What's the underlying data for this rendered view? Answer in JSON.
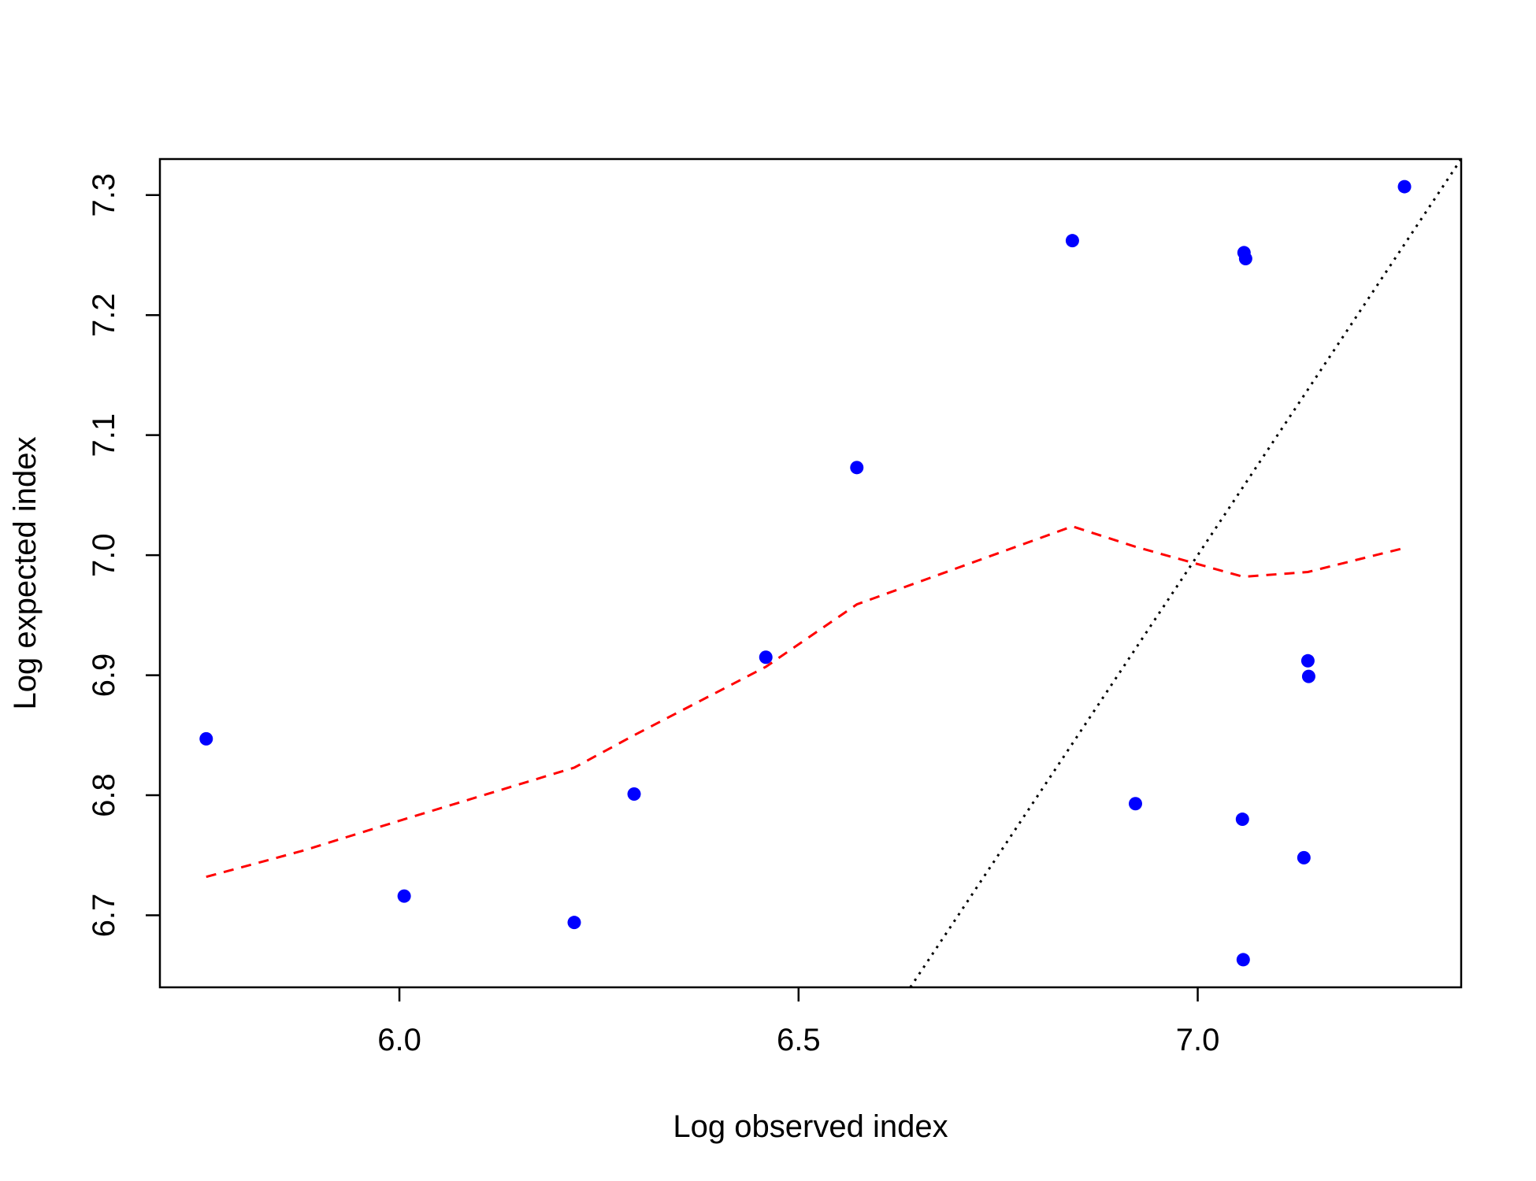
{
  "chart_data": {
    "type": "scatter",
    "xlabel": "Log observed index",
    "ylabel": "Log expected index",
    "xlim": [
      5.7,
      7.33
    ],
    "ylim": [
      6.64,
      7.33
    ],
    "x_ticks": [
      6.0,
      6.5,
      7.0
    ],
    "x_tick_labels": [
      "6.0",
      "6.5",
      "7.0"
    ],
    "y_ticks": [
      6.7,
      6.8,
      6.9,
      7.0,
      7.1,
      7.2,
      7.3
    ],
    "y_tick_labels": [
      "6.7",
      "6.8",
      "6.9",
      "7.0",
      "7.1",
      "7.2",
      "7.3"
    ],
    "grid": false,
    "legend": "none",
    "points": {
      "color": "#0000ff",
      "x": [
        5.758,
        6.006,
        6.219,
        6.294,
        6.459,
        6.573,
        6.843,
        6.922,
        7.056,
        7.057,
        7.058,
        7.06,
        7.133,
        7.138,
        7.139,
        7.259
      ],
      "y": [
        6.847,
        6.716,
        6.694,
        6.801,
        6.915,
        7.073,
        7.262,
        6.793,
        6.78,
        6.663,
        7.252,
        7.247,
        6.748,
        6.912,
        6.899,
        7.307
      ]
    },
    "smooth_line": {
      "style": "dashed",
      "color": "#ff0000",
      "x": [
        5.758,
        5.88,
        6.006,
        6.219,
        6.294,
        6.459,
        6.573,
        6.843,
        6.922,
        7.057,
        7.138,
        7.259
      ],
      "y": [
        6.732,
        6.754,
        6.78,
        6.823,
        6.85,
        6.907,
        6.959,
        7.024,
        7.007,
        6.982,
        6.986,
        7.006
      ]
    },
    "reference_line": {
      "style": "dotted",
      "color": "#000000",
      "slope": 1,
      "intercept": 0
    }
  }
}
